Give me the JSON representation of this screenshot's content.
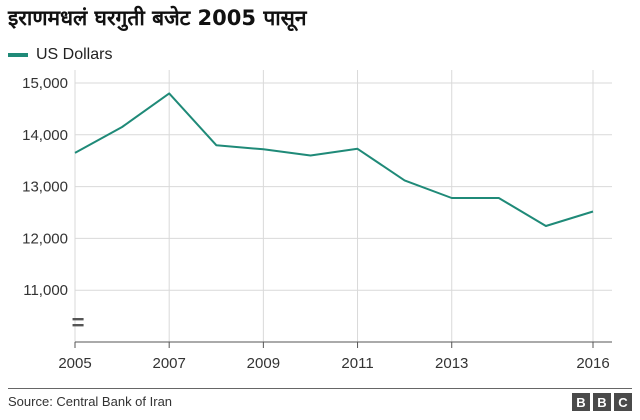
{
  "chart_data": {
    "type": "line",
    "title": "इराणमधलं घरगुती बजेट 2005 पासून",
    "xlabel": "",
    "ylabel": "",
    "x": [
      2005,
      2006,
      2007,
      2008,
      2009,
      2010,
      2011,
      2012,
      2013,
      2014,
      2015,
      2016
    ],
    "x_ticks": [
      "2005",
      "2007",
      "2009",
      "2011",
      "2013",
      "2016"
    ],
    "y_ticks": [
      "15,000",
      "14,000",
      "13,000",
      "12,000",
      "11,000"
    ],
    "ylim": [
      10000,
      15000
    ],
    "axis_break_marker": "=",
    "grid": true,
    "legend_position": "top-left",
    "series": [
      {
        "name": "US Dollars",
        "color": "#1f8a78",
        "values": [
          13650,
          14150,
          14800,
          13800,
          13720,
          13600,
          13730,
          13120,
          12780,
          12780,
          12240,
          12520
        ]
      }
    ]
  },
  "source": "Source: Central Bank of Iran",
  "logo": [
    "B",
    "B",
    "C"
  ]
}
